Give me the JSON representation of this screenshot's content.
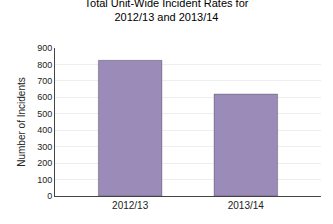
{
  "chart_data": {
    "type": "bar",
    "title": "Total Unit-Wide Incident Rates for\n2012/13 and 2013/14",
    "ylabel": "Number of Incidents",
    "categories": [
      "2012/13",
      "2013/14"
    ],
    "values": [
      825,
      620
    ],
    "color": "#9B8BB8",
    "ylim": [
      0,
      900
    ],
    "yticks": [
      0,
      100,
      200,
      300,
      400,
      500,
      600,
      700,
      800,
      900
    ],
    "grid": true
  }
}
